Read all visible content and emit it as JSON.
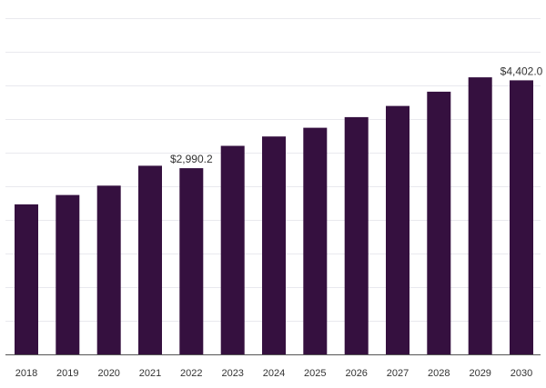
{
  "chart_data": {
    "type": "bar",
    "title": "",
    "xlabel": "",
    "ylabel": "",
    "categories": [
      "2018",
      "2019",
      "2020",
      "2021",
      "2022",
      "2023",
      "2024",
      "2025",
      "2026",
      "2027",
      "2028",
      "2029",
      "2030"
    ],
    "values": [
      2410,
      2560,
      2710,
      3030,
      2990.2,
      3350,
      3500,
      3640,
      3810,
      3990,
      4220,
      4450,
      4402.0
    ],
    "data_labels": [
      {
        "index": 4,
        "text": "$2,990.2"
      },
      {
        "index": 12,
        "text": "$4,402.0"
      }
    ],
    "ylim": [
      0,
      5400
    ],
    "y_gridlines": [
      540,
      1080,
      1620,
      2160,
      2700,
      3240,
      3780,
      4320,
      4860,
      5400
    ],
    "grid": true,
    "legend": "none",
    "colors": {
      "bar": "#35103f",
      "grid": "#e9e9ee",
      "axis": "#555555",
      "text": "#333333"
    }
  }
}
